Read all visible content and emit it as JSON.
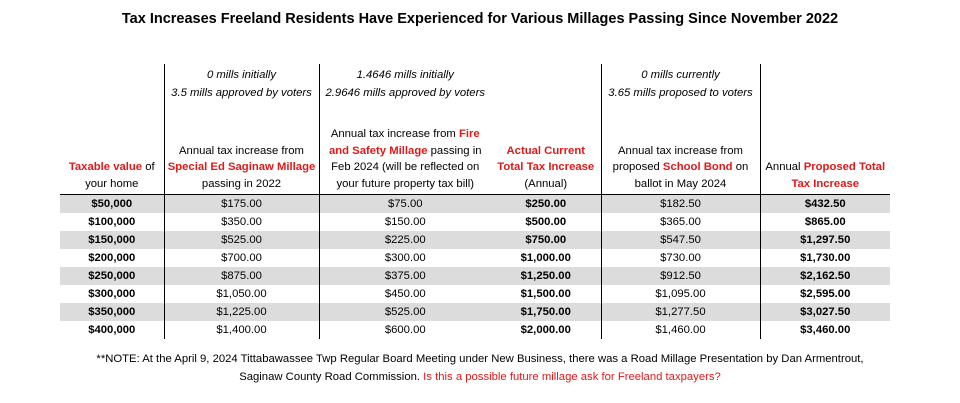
{
  "title": "Tax Increases Freeland Residents Have Experienced for Various Millages Passing Since November 2022",
  "columns": [
    {
      "top1": "",
      "top2": "",
      "header": [
        {
          "t": "Taxable value",
          "red": true
        },
        {
          "t": " of your home"
        }
      ]
    },
    {
      "top1": "0 mills initially",
      "top2": "3.5 mills approved by voters",
      "header": [
        {
          "t": "Annual tax increase from "
        },
        {
          "t": "Special Ed Saginaw Millage",
          "red": true
        },
        {
          "t": " passing in 2022"
        }
      ]
    },
    {
      "top1": "1.4646 mills initially",
      "top2": "2.9646 mills approved by voters",
      "header": [
        {
          "t": "Annual tax increase from "
        },
        {
          "t": "Fire and Safety Millage",
          "red": true
        },
        {
          "t": " passing in Feb 2024 (will be reflected on your future property tax bill)"
        }
      ]
    },
    {
      "top1": "",
      "top2": "",
      "header": [
        {
          "t": "Actual Current Total Tax Increase",
          "red": true
        },
        {
          "t": " (Annual)"
        }
      ]
    },
    {
      "top1": "0 mills currently",
      "top2": "3.65 mills proposed to voters",
      "header": [
        {
          "t": "Annual tax increase from proposed "
        },
        {
          "t": "School Bond",
          "red": true
        },
        {
          "t": " on ballot in May 2024"
        }
      ]
    },
    {
      "top1": "",
      "top2": "",
      "header": [
        {
          "t": "Annual "
        },
        {
          "t": "Proposed Total Tax Increase",
          "red": true
        }
      ]
    }
  ],
  "rows": [
    [
      "$50,000",
      "$175.00",
      "$75.00",
      "$250.00",
      "$182.50",
      "$432.50"
    ],
    [
      "$100,000",
      "$350.00",
      "$150.00",
      "$500.00",
      "$365.00",
      "$865.00"
    ],
    [
      "$150,000",
      "$525.00",
      "$225.00",
      "$750.00",
      "$547.50",
      "$1,297.50"
    ],
    [
      "$200,000",
      "$700.00",
      "$300.00",
      "$1,000.00",
      "$730.00",
      "$1,730.00"
    ],
    [
      "$250,000",
      "$875.00",
      "$375.00",
      "$1,250.00",
      "$912.50",
      "$2,162.50"
    ],
    [
      "$300,000",
      "$1,050.00",
      "$450.00",
      "$1,500.00",
      "$1,095.00",
      "$2,595.00"
    ],
    [
      "$350,000",
      "$1,225.00",
      "$525.00",
      "$1,750.00",
      "$1,277.50",
      "$3,027.50"
    ],
    [
      "$400,000",
      "$1,400.00",
      "$600.00",
      "$2,000.00",
      "$1,460.00",
      "$3,460.00"
    ]
  ],
  "note": {
    "line1": "**NOTE:  At the April 9, 2024 Tittabawassee Twp Regular Board Meeting under New Business, there was a Road Millage Presentation by Dan Armentrout,",
    "line2": "Saginaw County Road Commission.",
    "question": "Is this a possible future millage ask for Freeland taxpayers?"
  }
}
